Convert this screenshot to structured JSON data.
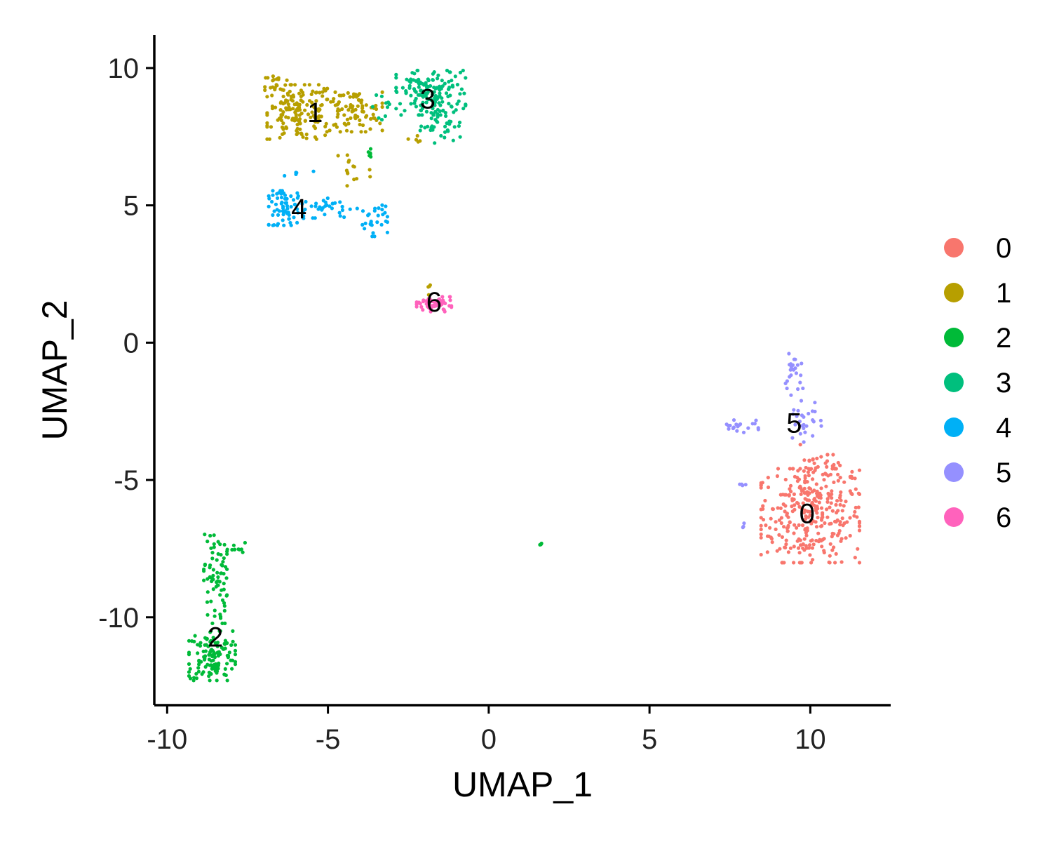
{
  "chart_data": {
    "type": "scatter",
    "title": "",
    "xlabel": "UMAP_1",
    "ylabel": "UMAP_2",
    "xlim": [
      -10.4,
      12.5
    ],
    "ylim": [
      -13.2,
      11.2
    ],
    "xticks": [
      -10,
      -5,
      0,
      5,
      10
    ],
    "yticks": [
      -10,
      -5,
      0,
      5,
      10
    ],
    "xtick_labels": [
      "-10",
      "-5",
      "0",
      "5",
      "10"
    ],
    "ytick_labels": [
      "-10",
      "-5",
      "0",
      "5",
      "10"
    ],
    "grid": false,
    "legend_position": "right",
    "series": [
      {
        "name": "0",
        "color": "#F8766D",
        "label_pos": [
          9.9,
          -6.3
        ],
        "clusters": [
          {
            "center": [
              10.0,
              -6.3
            ],
            "spread": [
              0.85,
              0.95
            ],
            "n": 300
          },
          {
            "center": [
              10.4,
              -4.8
            ],
            "spread": [
              0.5,
              0.4
            ],
            "n": 40
          },
          {
            "center": [
              9.9,
              -4.3
            ],
            "spread": [
              0.15,
              0.7
            ],
            "n": 10
          }
        ]
      },
      {
        "name": "1",
        "color": "#B79F00",
        "label_pos": [
          -5.4,
          8.3
        ],
        "clusters": [
          {
            "center": [
              -5.9,
              8.4
            ],
            "spread": [
              0.55,
              0.55
            ],
            "n": 150
          },
          {
            "center": [
              -4.3,
              8.4
            ],
            "spread": [
              0.55,
              0.4
            ],
            "n": 90
          },
          {
            "center": [
              -6.6,
              9.3
            ],
            "spread": [
              0.2,
              0.3
            ],
            "n": 20
          },
          {
            "center": [
              -4.3,
              6.3
            ],
            "spread": [
              0.35,
              0.6
            ],
            "n": 14
          },
          {
            "center": [
              -2.3,
              7.4
            ],
            "spread": [
              0.2,
              0.1
            ],
            "n": 5
          },
          {
            "center": [
              -1.8,
              1.9
            ],
            "spread": [
              0.08,
              0.2
            ],
            "n": 4
          }
        ]
      },
      {
        "name": "2",
        "color": "#00BA38",
        "label_pos": [
          -8.5,
          -10.8
        ],
        "clusters": [
          {
            "center": [
              -8.6,
              -11.4
            ],
            "spread": [
              0.4,
              0.5
            ],
            "n": 130
          },
          {
            "center": [
              -8.5,
              -8.6
            ],
            "spread": [
              0.2,
              0.9
            ],
            "n": 70
          },
          {
            "center": [
              -8.0,
              -7.5
            ],
            "spread": [
              0.3,
              0.12
            ],
            "n": 12
          },
          {
            "center": [
              -3.7,
              6.9
            ],
            "spread": [
              0.06,
              0.15
            ],
            "n": 6
          },
          {
            "center": [
              1.6,
              -7.4
            ],
            "spread": [
              0.05,
              0.05
            ],
            "n": 3
          }
        ]
      },
      {
        "name": "3",
        "color": "#00BF7D",
        "label_pos": [
          -1.9,
          8.8
        ],
        "clusters": [
          {
            "center": [
              -1.8,
              9.1
            ],
            "spread": [
              0.6,
              0.45
            ],
            "n": 150
          },
          {
            "center": [
              -1.5,
              7.9
            ],
            "spread": [
              0.35,
              0.35
            ],
            "n": 40
          },
          {
            "center": [
              -3.2,
              8.6
            ],
            "spread": [
              0.25,
              0.3
            ],
            "n": 10
          }
        ]
      },
      {
        "name": "4",
        "color": "#00B0F6",
        "label_pos": [
          -5.9,
          4.8
        ],
        "clusters": [
          {
            "center": [
              -6.3,
              4.9
            ],
            "spread": [
              0.3,
              0.35
            ],
            "n": 70
          },
          {
            "center": [
              -4.9,
              4.9
            ],
            "spread": [
              0.45,
              0.2
            ],
            "n": 30
          },
          {
            "center": [
              -3.6,
              4.5
            ],
            "spread": [
              0.25,
              0.35
            ],
            "n": 30
          },
          {
            "center": [
              -5.9,
              6.2
            ],
            "spread": [
              0.25,
              0.1
            ],
            "n": 5
          }
        ]
      },
      {
        "name": "5",
        "color": "#9590FF",
        "label_pos": [
          9.5,
          -3.0
        ],
        "clusters": [
          {
            "center": [
              9.5,
              -1.3
            ],
            "spread": [
              0.15,
              0.5
            ],
            "n": 25
          },
          {
            "center": [
              9.8,
              -2.9
            ],
            "spread": [
              0.3,
              0.4
            ],
            "n": 25
          },
          {
            "center": [
              7.8,
              -3.0
            ],
            "spread": [
              0.35,
              0.15
            ],
            "n": 20
          },
          {
            "center": [
              7.9,
              -5.3
            ],
            "spread": [
              0.08,
              0.08
            ],
            "n": 4
          },
          {
            "center": [
              7.9,
              -6.7
            ],
            "spread": [
              0.08,
              0.08
            ],
            "n": 3
          }
        ]
      },
      {
        "name": "6",
        "color": "#FF62BC",
        "label_pos": [
          -1.7,
          1.4
        ],
        "clusters": [
          {
            "center": [
              -1.7,
              1.4
            ],
            "spread": [
              0.3,
              0.15
            ],
            "n": 60
          }
        ]
      }
    ]
  }
}
